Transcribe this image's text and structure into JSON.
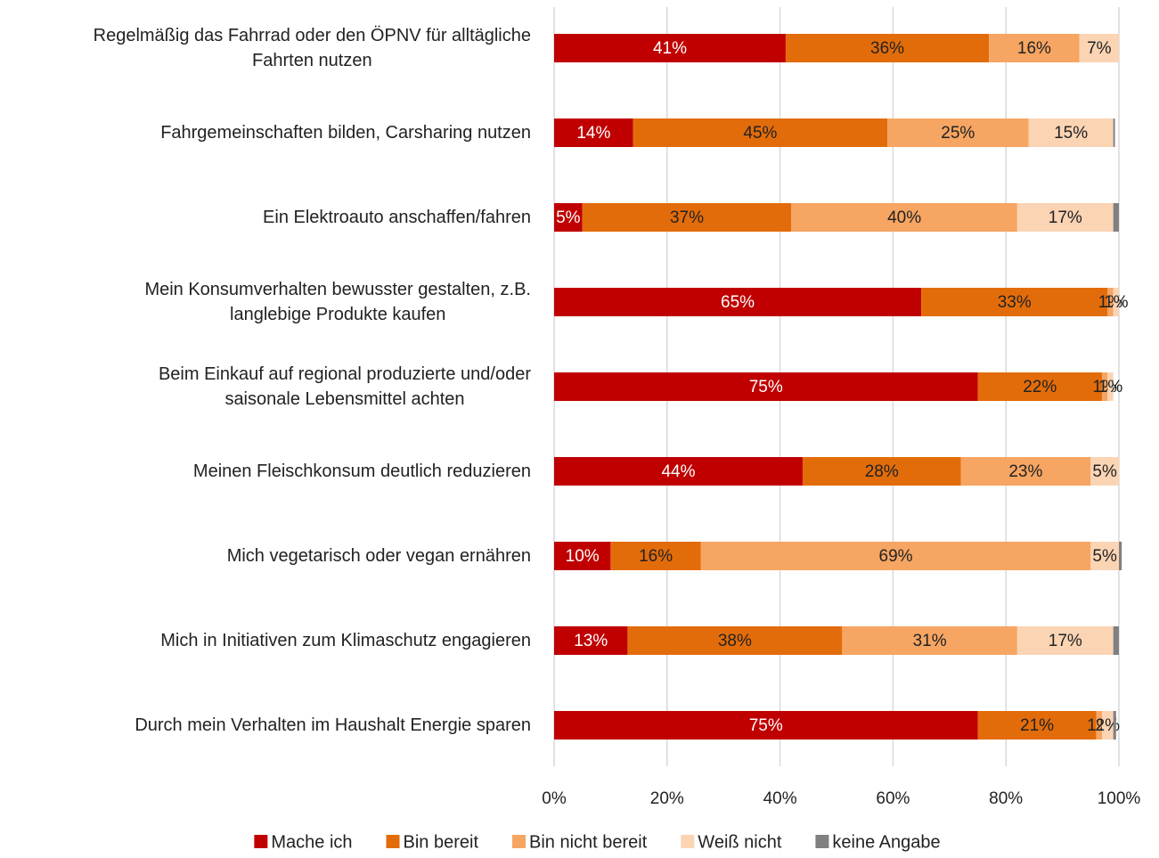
{
  "chart_data": {
    "type": "stacked-bar-horizontal",
    "categories": [
      "Regelmäßig das Fahrrad oder den ÖPNV für alltägliche\nFahrten nutzen",
      "Fahrgemeinschaften bilden, Carsharing nutzen",
      "Ein Elektroauto anschaffen/fahren",
      "Mein Konsumverhalten bewusster gestalten, z.B.\nlanglebige Produkte kaufen",
      "Beim Einkauf auf regional produzierte und/oder\nsaisonale Lebensmittel achten",
      "Meinen Fleischkonsum deutlich reduzieren",
      "Mich vegetarisch oder vegan ernähren",
      "Mich in Initiativen zum Klimaschutz engagieren",
      "Durch mein Verhalten im Haushalt Energie sparen"
    ],
    "series": [
      {
        "name": "Mache ich",
        "color": "#c00000",
        "label_color": "#ffffff",
        "values": [
          41,
          14,
          5,
          65,
          75,
          44,
          10,
          13,
          75
        ],
        "value_labels": [
          "41%",
          "14%",
          "5%",
          "65%",
          "75%",
          "44%",
          "10%",
          "13%",
          "75%"
        ]
      },
      {
        "name": "Bin bereit",
        "color": "#e36c0a",
        "label_color": "#222222",
        "values": [
          36,
          45,
          37,
          33,
          22,
          28,
          16,
          38,
          21
        ],
        "value_labels": [
          "36%",
          "45%",
          "37%",
          "33%",
          "22%",
          "28%",
          "16%",
          "38%",
          "21%"
        ]
      },
      {
        "name": "Bin nicht bereit",
        "color": "#f6a562",
        "label_color": "#222222",
        "values": [
          16,
          25,
          40,
          1,
          1,
          23,
          69,
          31,
          1
        ],
        "value_labels": [
          "16%",
          "25%",
          "40%",
          "1%",
          "1%",
          "23%",
          "69%",
          "31%",
          "1%"
        ]
      },
      {
        "name": "Weiß nicht",
        "color": "#fbd4b4",
        "label_color": "#222222",
        "values": [
          7,
          15,
          17,
          1,
          1,
          5,
          5,
          17,
          2
        ],
        "value_labels": [
          "7%",
          "15%",
          "17%",
          "1%",
          "1%",
          "5%",
          "5%",
          "17%",
          "2%"
        ]
      },
      {
        "name": "keine Angabe",
        "color": "#808080",
        "label_color": "#222222",
        "values": [
          0,
          0.3,
          1,
          0,
          0,
          0,
          0.5,
          1,
          0.5
        ],
        "value_labels": [
          null,
          null,
          null,
          null,
          null,
          null,
          null,
          null,
          null
        ]
      }
    ],
    "xlim": [
      0,
      100
    ],
    "xticks": [
      {
        "value": 0,
        "label": "0%"
      },
      {
        "value": 20,
        "label": "20%"
      },
      {
        "value": 40,
        "label": "40%"
      },
      {
        "value": 60,
        "label": "60%"
      },
      {
        "value": 80,
        "label": "80%"
      },
      {
        "value": 100,
        "label": "100%"
      }
    ],
    "grid": true,
    "legend": "bottom"
  }
}
